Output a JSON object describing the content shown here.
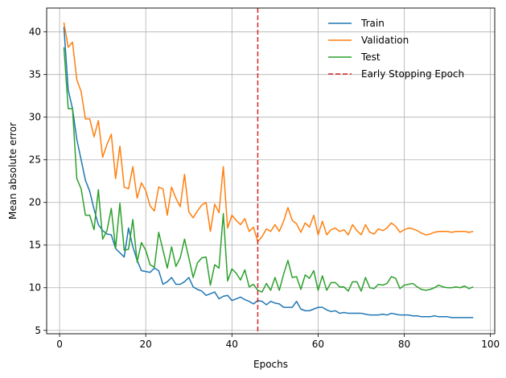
{
  "chart_data": {
    "type": "line",
    "title": "",
    "xlabel": "Epochs",
    "ylabel": "Mean absolute error",
    "xlim": [
      -3,
      101
    ],
    "ylim": [
      4.6,
      42.8
    ],
    "xticks": [
      0,
      20,
      40,
      60,
      80,
      100
    ],
    "yticks": [
      5,
      10,
      15,
      20,
      25,
      30,
      35,
      40
    ],
    "grid": true,
    "legend_position": "top-right",
    "early_stopping": {
      "name": "Early Stopping Epoch",
      "epoch": 46,
      "color": "#d62728"
    },
    "x": [
      1,
      2,
      3,
      4,
      5,
      6,
      7,
      8,
      9,
      10,
      11,
      12,
      13,
      14,
      15,
      16,
      17,
      18,
      19,
      20,
      21,
      22,
      23,
      24,
      25,
      26,
      27,
      28,
      29,
      30,
      31,
      32,
      33,
      34,
      35,
      36,
      37,
      38,
      39,
      40,
      41,
      42,
      43,
      44,
      45,
      46,
      47,
      48,
      49,
      50,
      51,
      52,
      53,
      54,
      55,
      56,
      57,
      58,
      59,
      60,
      61,
      62,
      63,
      64,
      65,
      66,
      67,
      68,
      69,
      70,
      71,
      72,
      73,
      74,
      75,
      76,
      77,
      78,
      79,
      80,
      81,
      82,
      83,
      84,
      85,
      86,
      87,
      88,
      89,
      90,
      91,
      92,
      93,
      94,
      95,
      96
    ],
    "series": [
      {
        "name": "Train",
        "color": "#1f77b4",
        "values": [
          40.6,
          33.2,
          31.0,
          27.4,
          25.0,
          22.6,
          21.3,
          19.2,
          17.4,
          16.7,
          16.3,
          16.2,
          14.6,
          14.1,
          13.6,
          17.0,
          14.8,
          13.2,
          12.0,
          11.9,
          11.8,
          12.3,
          12.0,
          10.4,
          10.7,
          11.2,
          10.4,
          10.4,
          10.7,
          11.2,
          10.1,
          9.8,
          9.6,
          9.1,
          9.3,
          9.5,
          8.7,
          9.0,
          9.1,
          8.5,
          8.7,
          8.9,
          8.6,
          8.4,
          8.1,
          8.5,
          8.4,
          8.0,
          8.4,
          8.2,
          8.1,
          7.7,
          7.7,
          7.7,
          8.4,
          7.5,
          7.3,
          7.3,
          7.5,
          7.7,
          7.7,
          7.4,
          7.2,
          7.3,
          7.0,
          7.1,
          7.0,
          7.0,
          7.0,
          7.0,
          6.9,
          6.8,
          6.8,
          6.8,
          6.9,
          6.8,
          7.0,
          6.9,
          6.8,
          6.8,
          6.8,
          6.7,
          6.7,
          6.6,
          6.6,
          6.6,
          6.7,
          6.6,
          6.6,
          6.6,
          6.5,
          6.5,
          6.5,
          6.5,
          6.5,
          6.5
        ]
      },
      {
        "name": "Validation",
        "color": "#ff7f0e",
        "values": [
          41.1,
          38.2,
          38.8,
          34.4,
          33.0,
          29.8,
          29.8,
          27.7,
          29.6,
          25.3,
          26.8,
          28.0,
          22.8,
          26.6,
          21.8,
          21.6,
          24.2,
          20.5,
          22.3,
          21.4,
          19.6,
          19.0,
          21.8,
          21.6,
          18.5,
          21.8,
          20.5,
          19.5,
          23.3,
          18.9,
          18.2,
          19.0,
          19.7,
          20.0,
          16.6,
          19.8,
          18.8,
          24.2,
          17.0,
          18.5,
          17.9,
          17.4,
          18.1,
          16.6,
          17.1,
          15.4,
          16.0,
          16.9,
          16.6,
          17.4,
          16.6,
          17.8,
          19.4,
          17.9,
          17.5,
          16.5,
          17.6,
          17.1,
          18.5,
          16.2,
          17.8,
          16.2,
          16.8,
          17.0,
          16.6,
          16.8,
          16.2,
          17.4,
          16.7,
          16.2,
          17.4,
          16.5,
          16.3,
          16.9,
          16.7,
          17.0,
          17.6,
          17.2,
          16.5,
          16.8,
          17.0,
          16.9,
          16.7,
          16.4,
          16.2,
          16.3,
          16.5,
          16.6,
          16.6,
          16.6,
          16.5,
          16.6,
          16.6,
          16.6,
          16.5,
          16.6
        ]
      },
      {
        "name": "Test",
        "color": "#2ca02c",
        "values": [
          38.2,
          31.0,
          31.0,
          22.8,
          21.6,
          18.5,
          18.5,
          16.8,
          21.5,
          15.7,
          16.7,
          19.3,
          14.6,
          19.9,
          14.4,
          14.5,
          18.0,
          13.0,
          15.3,
          14.4,
          12.7,
          12.4,
          16.5,
          14.4,
          12.3,
          14.8,
          12.5,
          13.5,
          15.7,
          13.5,
          11.2,
          12.9,
          13.5,
          13.6,
          10.3,
          12.7,
          12.3,
          18.7,
          10.8,
          12.2,
          11.7,
          10.9,
          12.1,
          10.1,
          10.4,
          9.7,
          9.5,
          10.5,
          9.7,
          11.2,
          9.7,
          11.6,
          13.2,
          11.2,
          11.3,
          9.8,
          11.5,
          11.1,
          12.0,
          9.7,
          11.4,
          9.7,
          10.6,
          10.6,
          10.1,
          10.1,
          9.6,
          10.7,
          10.7,
          9.6,
          11.2,
          10.0,
          9.9,
          10.4,
          10.3,
          10.5,
          11.3,
          11.1,
          9.9,
          10.3,
          10.4,
          10.5,
          10.1,
          9.8,
          9.7,
          9.8,
          10.0,
          10.3,
          10.1,
          10.0,
          10.0,
          10.1,
          10.0,
          10.2,
          9.9,
          10.1
        ]
      }
    ]
  }
}
